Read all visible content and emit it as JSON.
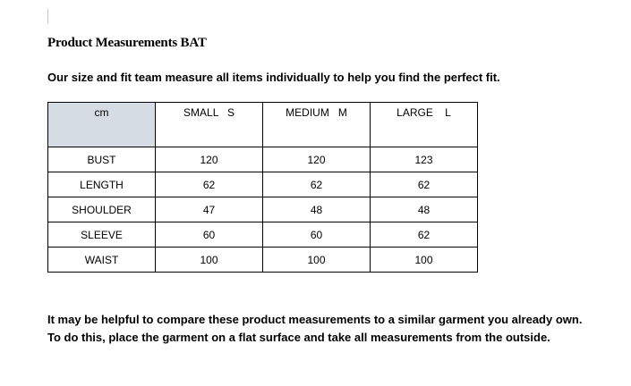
{
  "title": "Product Measurements BAT",
  "intro": "Our size and fit team measure all items individually to help you find the perfect fit.",
  "table": {
    "headers": [
      "cm",
      "SMALL   S",
      "MEDIUM   M",
      "LARGE    L"
    ],
    "rows": [
      [
        "BUST",
        "120",
        "120",
        "123"
      ],
      [
        "LENGTH",
        "62",
        "62",
        "62"
      ],
      [
        "SHOULDER",
        "47",
        "48",
        "48"
      ],
      [
        "SLEEVE",
        "60",
        "60",
        "62"
      ],
      [
        "WAIST",
        "100",
        "100",
        "100"
      ]
    ],
    "header_fill": "#d6dce4"
  },
  "notes": [
    "It may be helpful to compare these product measurements to a similar garment you already own.",
    "To do this, place the garment on a flat surface and take all measurements from the outside."
  ]
}
